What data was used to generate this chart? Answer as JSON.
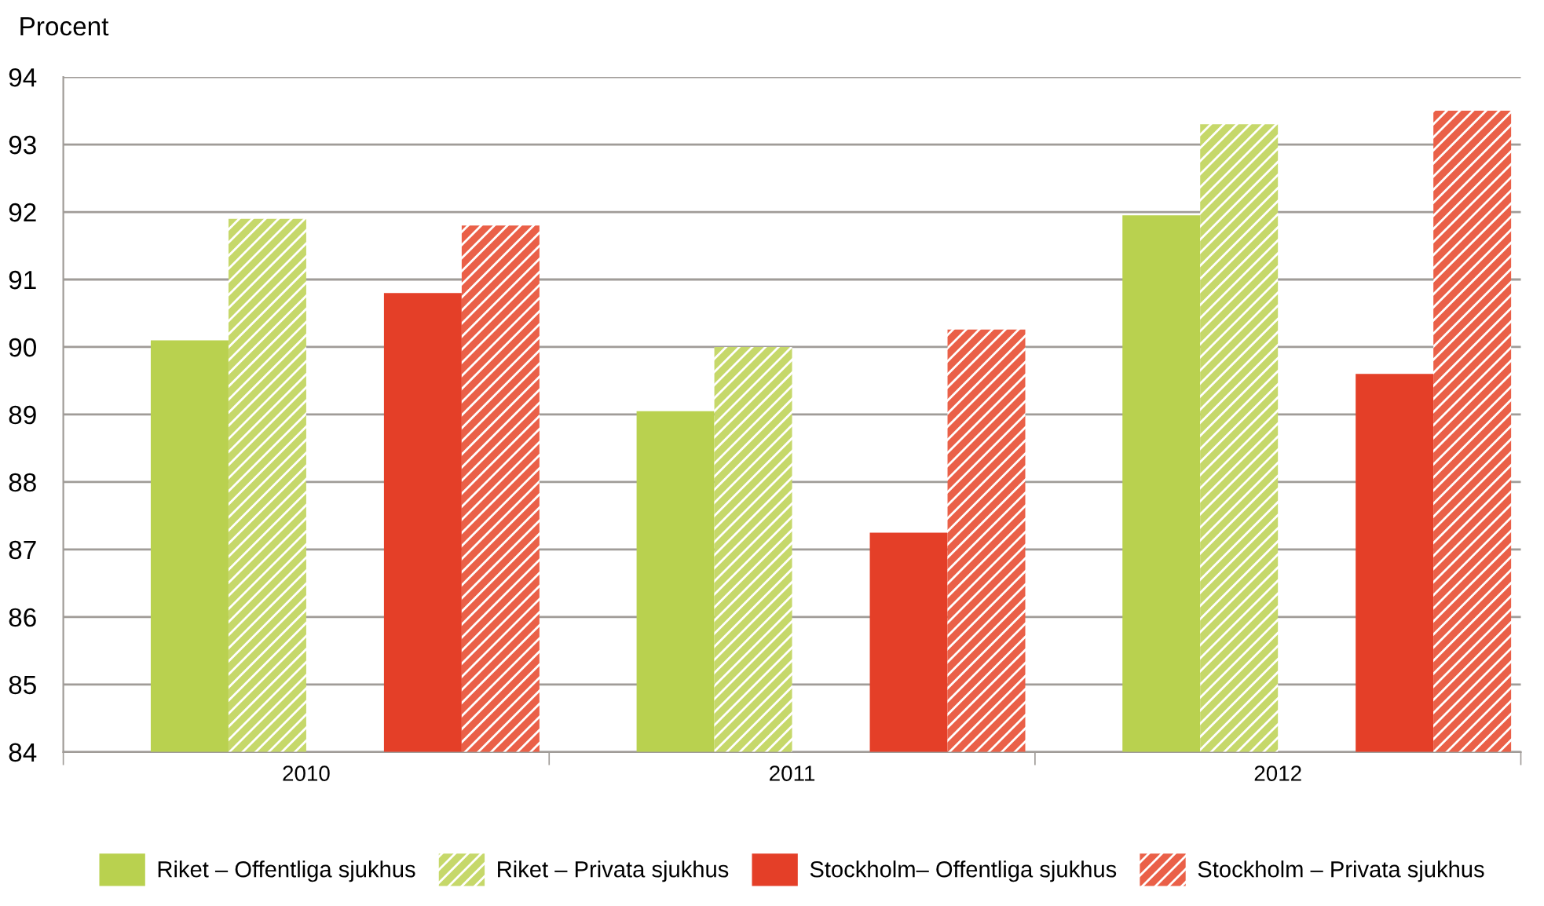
{
  "chart_data": {
    "type": "bar",
    "ylabel": "Procent",
    "categories": [
      "2010",
      "2011",
      "2012"
    ],
    "series": [
      {
        "name": "Riket – Offentliga sjukhus",
        "color": "#b9d14f",
        "values": [
          90.1,
          89.05,
          91.95
        ]
      },
      {
        "name": "Riket – Privata sjukhus",
        "color": "#c6d86a",
        "values": [
          91.9,
          90.0,
          93.3
        ]
      },
      {
        "name": "Stockholm– Offentliga sjukhus",
        "color": "#e43f28",
        "values": [
          90.8,
          87.25,
          89.6
        ]
      },
      {
        "name": "Stockholm – Privata sjukhus",
        "color": "#ea6048",
        "values": [
          91.8,
          90.26,
          93.5
        ]
      }
    ],
    "ylim": [
      84,
      94
    ],
    "yticks": [
      84,
      85,
      86,
      87,
      88,
      89,
      90,
      91,
      92,
      93,
      94
    ],
    "grid": "y",
    "legend": "bottom"
  }
}
